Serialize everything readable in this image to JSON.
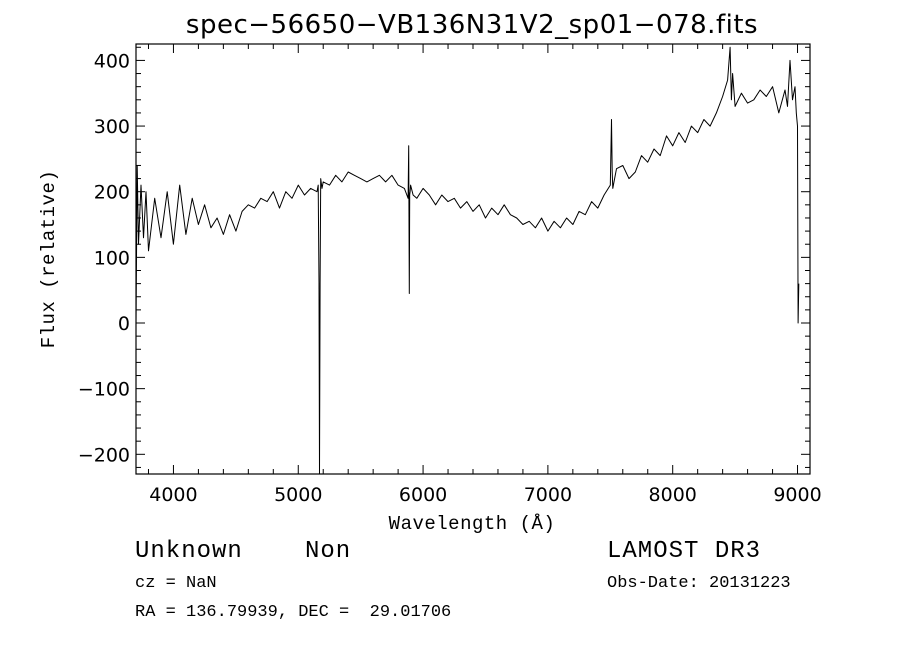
{
  "chart_data": {
    "type": "line",
    "title": "spec−56650−VB136N31V2_sp01−078.fits",
    "xlabel": "Wavelength (Å)",
    "ylabel": "Flux (relative)",
    "xlim": [
      3700,
      9100
    ],
    "ylim": [
      -230,
      425
    ],
    "xticks": [
      4000,
      5000,
      6000,
      7000,
      8000,
      9000
    ],
    "xtick_labels": [
      "4000",
      "5000",
      "6000",
      "7000",
      "8000",
      "9000"
    ],
    "yticks": [
      400,
      300,
      200,
      100,
      0,
      -100,
      -200
    ],
    "ytick_labels": [
      "400",
      "300",
      "200",
      "100",
      "0",
      "−100",
      "−200"
    ],
    "series": [
      {
        "x": [
          3700,
          3710,
          3720,
          3740,
          3760,
          3780,
          3800,
          3850,
          3900,
          3950,
          4000,
          4050,
          4100,
          4150,
          4200,
          4250,
          4300,
          4350,
          4400,
          4450,
          4500,
          4550,
          4600,
          4650,
          4700,
          4750,
          4800,
          4850,
          4900,
          4950,
          5000,
          5050,
          5100,
          5150,
          5160,
          5166,
          5170,
          5175,
          5180,
          5190,
          5200,
          5250,
          5300,
          5350,
          5400,
          5450,
          5500,
          5550,
          5600,
          5650,
          5700,
          5750,
          5800,
          5850,
          5880,
          5885,
          5890,
          5893,
          5896,
          5900,
          5920,
          5950,
          6000,
          6050,
          6100,
          6150,
          6200,
          6250,
          6300,
          6350,
          6400,
          6450,
          6500,
          6550,
          6600,
          6650,
          6700,
          6750,
          6800,
          6850,
          6900,
          6950,
          7000,
          7050,
          7100,
          7150,
          7200,
          7250,
          7300,
          7350,
          7400,
          7450,
          7500,
          7510,
          7515,
          7520,
          7530,
          7550,
          7600,
          7650,
          7700,
          7750,
          7800,
          7850,
          7900,
          7950,
          8000,
          8050,
          8100,
          8150,
          8200,
          8250,
          8300,
          8350,
          8400,
          8440,
          8460,
          8470,
          8480,
          8500,
          8550,
          8600,
          8650,
          8700,
          8750,
          8800,
          8850,
          8900,
          8920,
          8940,
          8960,
          8980,
          8990,
          9000,
          9005,
          9010
        ],
        "y": [
          0,
          240,
          120,
          210,
          130,
          200,
          110,
          190,
          130,
          200,
          120,
          210,
          135,
          190,
          150,
          180,
          145,
          160,
          135,
          165,
          140,
          170,
          180,
          175,
          190,
          185,
          200,
          175,
          200,
          190,
          210,
          195,
          205,
          200,
          210,
          60,
          -235,
          60,
          220,
          205,
          215,
          210,
          225,
          215,
          230,
          225,
          220,
          215,
          220,
          225,
          215,
          225,
          210,
          205,
          190,
          270,
          45,
          195,
          200,
          210,
          195,
          190,
          205,
          195,
          180,
          195,
          185,
          190,
          175,
          185,
          170,
          180,
          160,
          175,
          165,
          180,
          165,
          160,
          150,
          155,
          145,
          160,
          140,
          155,
          145,
          160,
          150,
          170,
          165,
          185,
          175,
          195,
          210,
          310,
          230,
          205,
          215,
          235,
          240,
          220,
          230,
          255,
          245,
          265,
          255,
          285,
          270,
          290,
          275,
          300,
          290,
          310,
          300,
          320,
          345,
          370,
          420,
          340,
          380,
          330,
          350,
          335,
          340,
          355,
          345,
          360,
          320,
          355,
          330,
          400,
          340,
          360,
          320,
          300,
          0,
          60
        ]
      }
    ]
  },
  "footer": {
    "object_class": "Unknown",
    "object_subclass": "Non",
    "cz": "cz = NaN",
    "coords": "RA = 136.79939, DEC =  29.01706",
    "survey": "LAMOST DR3",
    "obs_date": "Obs-Date: 20131223"
  }
}
